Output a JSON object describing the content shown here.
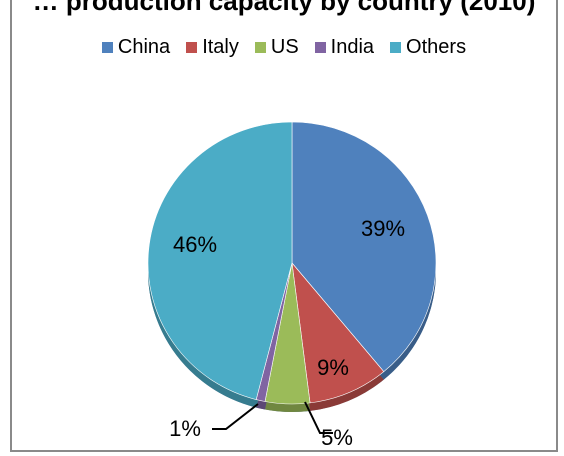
{
  "chart_data": {
    "type": "pie",
    "title": "… production capacity by country (2010)",
    "legend_position": "top",
    "labels": [
      "China",
      "Italy",
      "US",
      "India",
      "Others"
    ],
    "values": [
      39,
      9,
      5,
      1,
      46
    ],
    "value_labels": [
      "39%",
      "9%",
      "5%",
      "1%",
      "46%"
    ],
    "colors": [
      "#4F81BD",
      "#C0504D",
      "#9BBB59",
      "#8064A2",
      "#4BACC6"
    ]
  }
}
